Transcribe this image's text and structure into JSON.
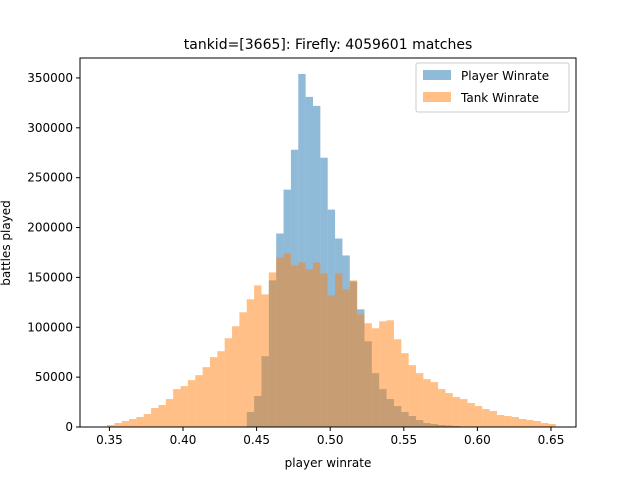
{
  "chart_data": {
    "type": "histogram",
    "title": "tankid=[3665]: Firefly: 4059601 matches",
    "xlabel": "player winrate",
    "ylabel": "battles played",
    "xlim": [
      0.33,
      0.667
    ],
    "ylim": [
      0,
      370000
    ],
    "x_ticks": [
      0.35,
      0.4,
      0.45,
      0.5,
      0.55,
      0.6,
      0.65
    ],
    "x_tick_labels": [
      "0.35",
      "0.40",
      "0.45",
      "0.50",
      "0.55",
      "0.60",
      "0.65"
    ],
    "y_ticks": [
      0,
      50000,
      100000,
      150000,
      200000,
      250000,
      300000,
      350000
    ],
    "y_tick_labels": [
      "0",
      "50000",
      "100000",
      "150000",
      "200000",
      "250000",
      "300000",
      "350000"
    ],
    "grid": false,
    "legend_position": "upper right",
    "series": [
      {
        "name": "Player Winrate",
        "color": "#1f77b4",
        "alpha": 0.5,
        "bin_edges": [
          0.4433,
          0.4483,
          0.4533,
          0.4583,
          0.4633,
          0.4683,
          0.4733,
          0.4783,
          0.4833,
          0.4883,
          0.4933,
          0.4983,
          0.5033,
          0.5083,
          0.5133,
          0.5183,
          0.5233,
          0.5283,
          0.5333,
          0.5383,
          0.5433,
          0.5483,
          0.5533,
          0.5583,
          0.5633,
          0.5683,
          0.5733,
          0.5783,
          0.5833,
          0.5883,
          0.5933,
          0.5983,
          0.6033,
          0.6083,
          0.6133,
          0.6183,
          0.6233
        ],
        "counts": [
          15000,
          31000,
          71000,
          147000,
          194000,
          238000,
          278000,
          354000,
          331000,
          322000,
          270000,
          218000,
          189000,
          172000,
          146000,
          118000,
          86000,
          54000,
          38000,
          28000,
          21000,
          15000,
          11000,
          7000,
          4000,
          3000,
          2000,
          1500,
          1000,
          500,
          400,
          300,
          200,
          100,
          100,
          100
        ]
      },
      {
        "name": "Tank Winrate",
        "color": "#ff7f0e",
        "alpha": 0.5,
        "bin_edges": [
          0.3483,
          0.3533,
          0.3583,
          0.3633,
          0.3683,
          0.3733,
          0.3783,
          0.3833,
          0.3883,
          0.3933,
          0.3983,
          0.4033,
          0.4083,
          0.4133,
          0.4183,
          0.4233,
          0.4283,
          0.4333,
          0.4383,
          0.4433,
          0.4483,
          0.4533,
          0.4583,
          0.4633,
          0.4683,
          0.4733,
          0.4783,
          0.4833,
          0.4883,
          0.4933,
          0.4983,
          0.5033,
          0.5083,
          0.5133,
          0.5183,
          0.5233,
          0.5283,
          0.5333,
          0.5383,
          0.5433,
          0.5483,
          0.5533,
          0.5583,
          0.5633,
          0.5683,
          0.5733,
          0.5783,
          0.5833,
          0.5883,
          0.5933,
          0.5983,
          0.6033,
          0.6083,
          0.6133,
          0.6183,
          0.6233,
          0.6283,
          0.6333,
          0.6383,
          0.6433,
          0.6483,
          0.6533
        ],
        "counts": [
          2000,
          4000,
          6000,
          8000,
          10000,
          13000,
          19000,
          22000,
          28000,
          38000,
          41000,
          47000,
          52000,
          60000,
          70000,
          76000,
          89000,
          101000,
          115000,
          128000,
          142000,
          133000,
          155000,
          170000,
          174000,
          162000,
          165000,
          158000,
          165000,
          154000,
          132000,
          154000,
          138000,
          147000,
          113000,
          104000,
          99000,
          106000,
          107000,
          88000,
          74000,
          62000,
          54000,
          48000,
          45000,
          38000,
          34000,
          30000,
          28000,
          24000,
          21000,
          18000,
          16000,
          12000,
          11000,
          10000,
          8000,
          7000,
          6000,
          4000,
          3000
        ]
      }
    ]
  }
}
